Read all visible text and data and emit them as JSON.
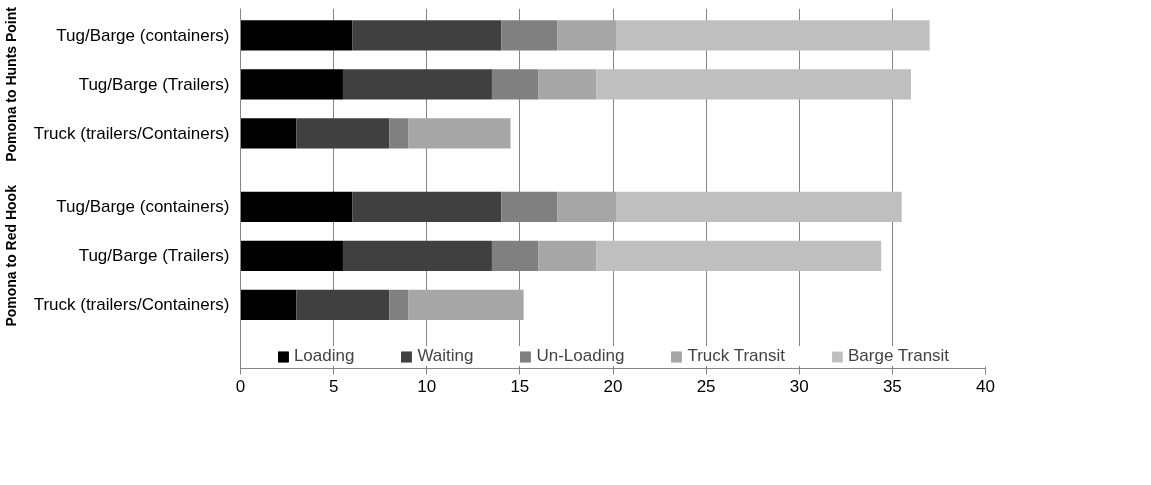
{
  "chart_data": [
    {
      "type": "bar",
      "orientation": "horizontal",
      "stacked": true,
      "ylabel": "Pomona to Hunts Point",
      "categories": [
        "Tug/Barge (containers)",
        "Tug/Barge (Trailers)",
        "Truck (trailers/Containers)"
      ],
      "xlim": [
        0,
        40
      ],
      "xticks": [
        0,
        5,
        10,
        15,
        20,
        25,
        30,
        35,
        40
      ],
      "grid": "x",
      "tick_labels": "y",
      "series": [
        {
          "color": "#000000",
          "values": [
            6,
            5.5,
            3
          ]
        },
        {
          "color": "#404040",
          "values": [
            8,
            8,
            5
          ]
        },
        {
          "color": "#808080",
          "values": [
            3,
            2.5,
            1
          ]
        },
        {
          "color": "#a6a6a6",
          "values": [
            3.2,
            3.1,
            5.5
          ]
        },
        {
          "color": "#bfbfbf",
          "values": [
            16.8,
            16.9,
            null
          ]
        }
      ]
    },
    {
      "type": "bar",
      "orientation": "horizontal",
      "stacked": true,
      "ylabel": "Pomona to Red Hook",
      "categories": [
        "Tug/Barge (containers)",
        "Tug/Barge (Trailers)",
        "Truck (trailers/Containers)"
      ],
      "xlim": [
        0,
        40
      ],
      "xticks": [
        0,
        5,
        10,
        15,
        20,
        25,
        30,
        35,
        40
      ],
      "grid": "x",
      "legend": "bottom",
      "series": [
        {
          "name": "Loading",
          "color": "#000000",
          "values": [
            6,
            5.5,
            3
          ]
        },
        {
          "name": "Waiting",
          "color": "#404040",
          "values": [
            8,
            8,
            5
          ]
        },
        {
          "name": "Un-Loading",
          "color": "#808080",
          "values": [
            3,
            2.5,
            1
          ]
        },
        {
          "name": "Truck Transit",
          "color": "#a6a6a6",
          "values": [
            3.2,
            3.1,
            6.2
          ]
        },
        {
          "name": "Barge Transit",
          "color": "#bfbfbf",
          "values": [
            15.3,
            15.3,
            null
          ]
        }
      ]
    }
  ]
}
